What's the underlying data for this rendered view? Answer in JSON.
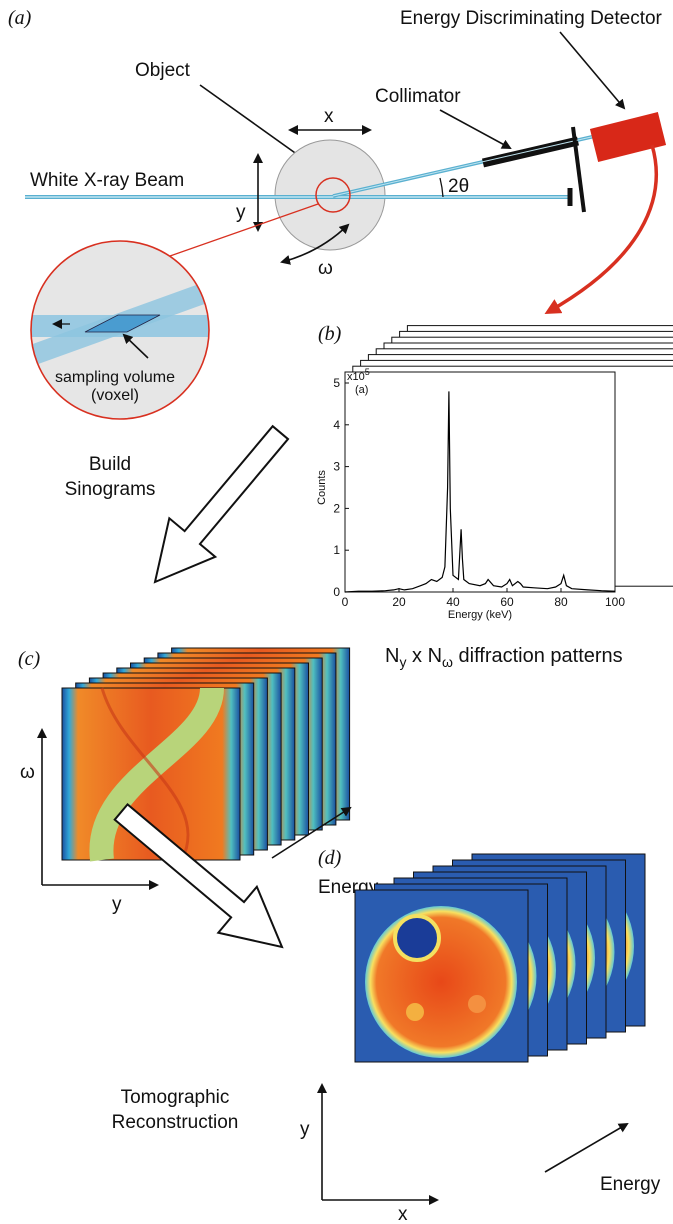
{
  "panel_labels": [
    "(a)",
    "(b)",
    "(c)",
    "(d)"
  ],
  "setup": {
    "detector": "Energy Discriminating Detector",
    "object": "Object",
    "collimator": "Collimator",
    "beam": "White X-ray Beam",
    "x": "x",
    "y": "y",
    "angle": "2θ",
    "rotation": "ω",
    "inset": [
      "sampling volume",
      "(voxel)"
    ]
  },
  "steps": {
    "sinograms": [
      "Build",
      "Sinograms"
    ],
    "reconstruction": [
      "Tomographic",
      "Reconstruction"
    ]
  },
  "spectrum": {
    "type": "line",
    "label": "(a)",
    "multiplier": {
      "base": "x10",
      "exponent": "5"
    },
    "x_label": "Energy (keV)",
    "y_label": "Counts",
    "color": "#000000",
    "xlim": [
      0,
      100
    ],
    "ylim": [
      0,
      5
    ],
    "xticks": [
      0,
      20,
      40,
      60,
      80,
      100
    ],
    "yticks": [
      0,
      1,
      2,
      3,
      4,
      5
    ],
    "x": [
      0,
      5,
      10,
      15,
      18,
      20,
      22,
      25,
      28,
      30,
      32,
      34,
      36,
      37,
      38,
      38.5,
      39,
      40,
      42,
      43,
      43.5,
      44,
      46,
      50,
      52,
      53,
      55,
      58,
      60,
      61,
      62,
      64,
      65,
      66,
      70,
      75,
      78,
      80,
      81,
      82,
      84,
      90,
      95,
      100
    ],
    "values": [
      0,
      0.02,
      0.02,
      0.03,
      0.05,
      0.08,
      0.05,
      0.08,
      0.15,
      0.2,
      0.3,
      0.25,
      0.35,
      0.6,
      2.5,
      4.8,
      2.0,
      0.4,
      0.3,
      1.5,
      0.8,
      0.3,
      0.2,
      0.15,
      0.2,
      0.3,
      0.15,
      0.12,
      0.2,
      0.3,
      0.15,
      0.25,
      0.2,
      0.12,
      0.1,
      0.08,
      0.12,
      0.2,
      0.4,
      0.15,
      0.08,
      0.05,
      0.03,
      0.02
    ]
  },
  "patterns_caption": [
    "N",
    "y",
    " x N",
    "ω",
    " diffraction patterns"
  ],
  "sinogram_axes": {
    "vertical": "ω",
    "horizontal": "y",
    "depth": "Energy"
  },
  "reconstruction_axes": {
    "vertical": "y",
    "horizontal": "x",
    "depth": "Energy"
  }
}
